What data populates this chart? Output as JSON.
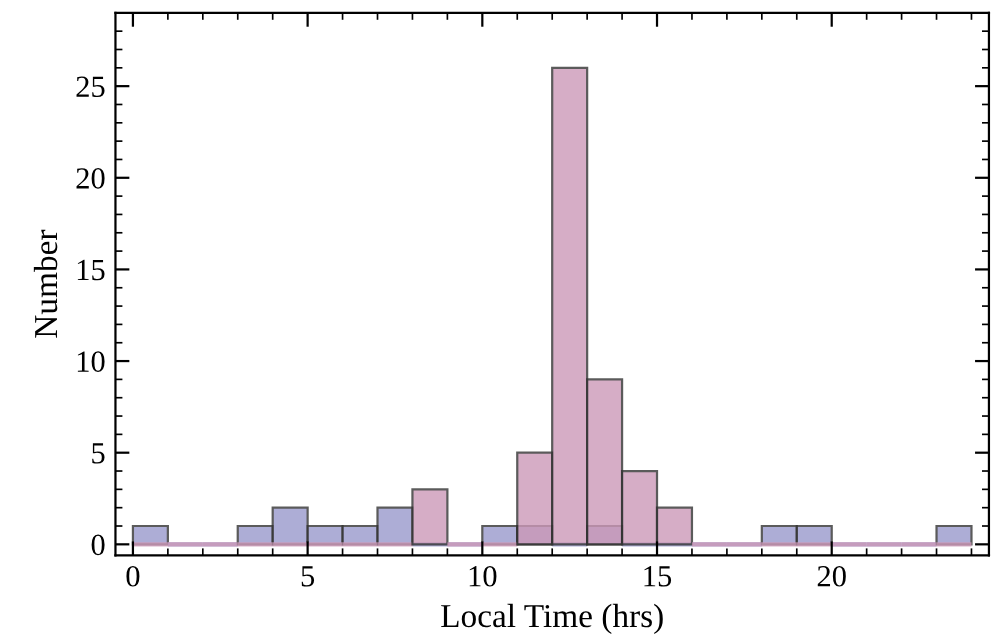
{
  "chart_data": {
    "type": "histogram",
    "xlabel": "Local Time (hrs)",
    "ylabel": "Number",
    "bins": [
      0,
      1,
      2,
      3,
      4,
      5,
      6,
      7,
      8,
      9,
      10,
      11,
      12,
      13,
      14,
      15,
      16,
      17,
      18,
      19,
      20,
      21,
      22,
      23,
      24
    ],
    "series": [
      {
        "color": "#9999cc",
        "values": [
          1,
          0,
          0,
          1,
          2,
          1,
          1,
          2,
          0,
          0,
          1,
          1,
          0,
          1,
          0,
          0,
          0,
          0,
          1,
          1,
          0,
          0,
          0,
          1
        ]
      },
      {
        "color": "#cc99b8",
        "values": [
          0,
          0,
          0,
          0,
          0,
          0,
          0,
          0,
          3,
          0,
          0,
          5,
          26,
          9,
          4,
          2,
          0,
          0,
          0,
          0,
          0,
          0,
          0,
          0
        ]
      }
    ],
    "xlim": [
      -0.5,
      24.5
    ],
    "ylim": [
      -0.6,
      29
    ],
    "xticks": [
      0,
      5,
      10,
      15,
      20
    ],
    "yticks": [
      0,
      5,
      10,
      15,
      20,
      25
    ],
    "grid": false,
    "legend": false
  }
}
